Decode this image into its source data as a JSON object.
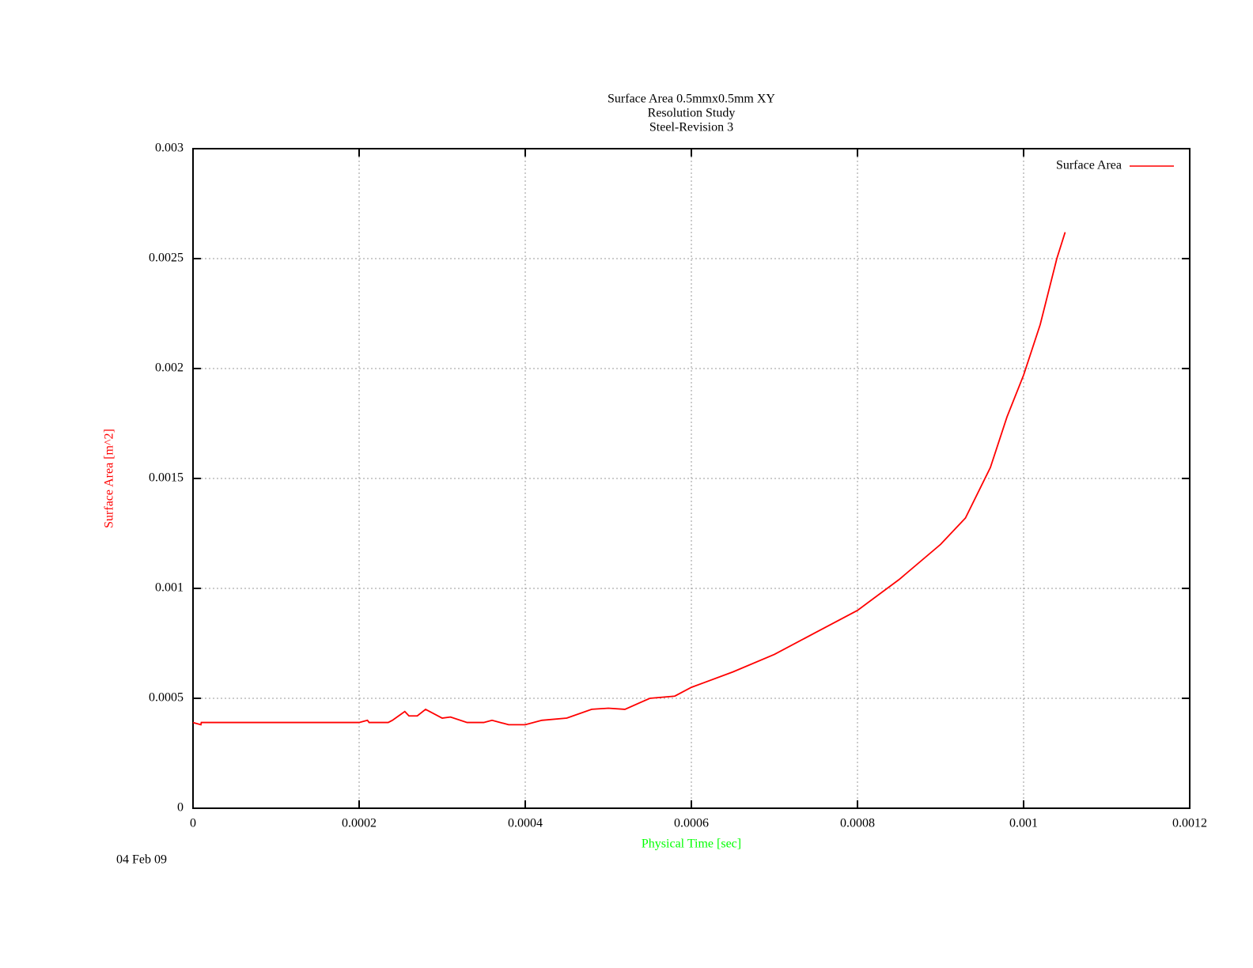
{
  "chart_data": {
    "type": "line",
    "title": [
      "Surface Area 0.5mmx0.5mm XY",
      "Resolution Study",
      "Steel-Revision 3"
    ],
    "x_label": "Physical Time [sec]",
    "y_label": "Surface Area [m^2]",
    "x_label_color": "#00ff00",
    "y_label_color": "#ff0000",
    "date": "04 Feb 09",
    "x": [
      0,
      9.5e-06,
      1e-05,
      0.0002,
      0.00021,
      0.000212,
      0.000235,
      0.00024,
      0.000255,
      0.00026,
      0.00027,
      0.00028,
      0.0003,
      0.00031,
      0.00033,
      0.00035,
      0.00036,
      0.00038,
      0.0004,
      0.00042,
      0.00045,
      0.00048,
      0.0005,
      0.00052,
      0.00055,
      0.00058,
      0.0006,
      0.00065,
      0.0007,
      0.00075,
      0.0008,
      0.00085,
      0.0009,
      0.00093,
      0.00096,
      0.00098,
      0.001,
      0.00102,
      0.00104,
      0.00105
    ],
    "series": [
      {
        "name": "Surface Area",
        "color": "#ff0000",
        "values": [
          0.00039,
          0.00038,
          0.00039,
          0.00039,
          0.0004,
          0.00039,
          0.00039,
          0.0004,
          0.00044,
          0.00042,
          0.00042,
          0.00045,
          0.00041,
          0.000415,
          0.00039,
          0.00039,
          0.0004,
          0.00038,
          0.00038,
          0.0004,
          0.00041,
          0.00045,
          0.000455,
          0.00045,
          0.0005,
          0.00051,
          0.00055,
          0.00062,
          0.0007,
          0.0008,
          0.0009,
          0.00104,
          0.0012,
          0.00132,
          0.00155,
          0.00178,
          0.00197,
          0.0022,
          0.0025,
          0.00262
        ]
      }
    ],
    "xlim": [
      0,
      0.0012
    ],
    "xticks": [
      0,
      0.0002,
      0.0004,
      0.0006,
      0.0008,
      0.001,
      0.0012
    ],
    "ylim": [
      0,
      0.003
    ],
    "yticks": [
      0,
      0.0005,
      0.001,
      0.0015,
      0.002,
      0.0025,
      0.003
    ],
    "grid": true,
    "legend": "top-right"
  }
}
